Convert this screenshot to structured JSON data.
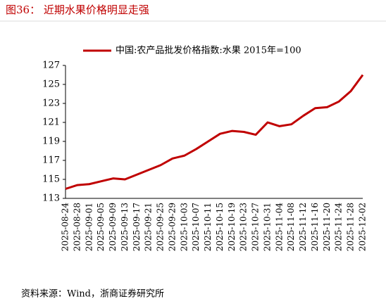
{
  "chart_data": {
    "type": "line",
    "title": "图36：  近期水果价格明显走强",
    "source": "资料来源：Wind，浙商证券研究所",
    "categories": [
      "2025-08-24",
      "2025-08-28",
      "2025-09-01",
      "2025-09-05",
      "2025-09-09",
      "2025-09-13",
      "2025-09-17",
      "2025-09-21",
      "2025-09-25",
      "2025-09-29",
      "2025-10-03",
      "2025-10-07",
      "2025-10-11",
      "2025-10-15",
      "2025-10-19",
      "2025-10-23",
      "2025-10-27",
      "2025-10-31",
      "2025-11-04",
      "2025-11-08",
      "2025-11-12",
      "2025-11-16",
      "2025-11-20",
      "2025-11-24",
      "2025-11-28",
      "2025-12-02"
    ],
    "series": [
      {
        "name": "中国:农产品批发价格指数:水果 2015年=100",
        "color": "#c00000",
        "values": [
          114.0,
          114.4,
          114.5,
          114.8,
          115.1,
          115.0,
          115.5,
          116.0,
          116.5,
          117.2,
          117.5,
          118.2,
          119.0,
          119.8,
          120.1,
          120.0,
          119.7,
          121.0,
          120.6,
          120.8,
          121.7,
          122.5,
          122.6,
          123.2,
          124.3,
          126.0
        ]
      }
    ],
    "ylim": [
      113,
      127
    ],
    "yticks": [
      113,
      115,
      117,
      119,
      121,
      123,
      125,
      127
    ]
  }
}
